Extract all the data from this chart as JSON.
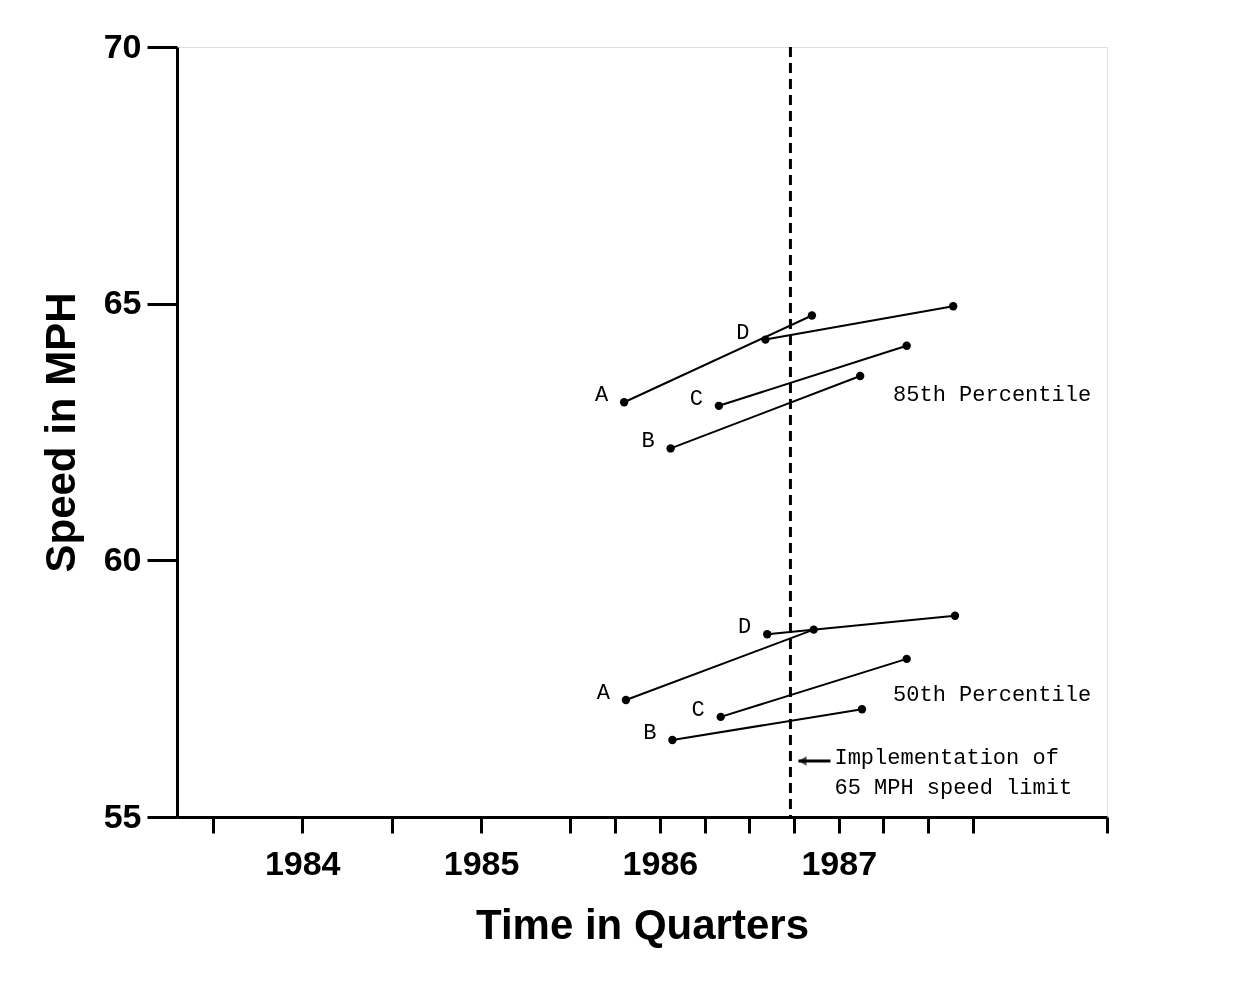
{
  "chart_data": {
    "type": "line",
    "xlabel": "Time in Quarters",
    "ylabel": "Speed in MPH",
    "xlim": [
      1983.8,
      1989.0
    ],
    "ylim": [
      55,
      70
    ],
    "yticks": [
      55,
      60,
      65,
      70
    ],
    "xticks": [
      {
        "value": 1984,
        "label": null
      },
      {
        "value": 1985,
        "label": null
      },
      {
        "value": 1986,
        "label": null
      },
      {
        "value": 1986.25,
        "label": null
      },
      {
        "value": 1986.75,
        "label": null
      },
      {
        "value": 1987,
        "label": null
      },
      {
        "value": 1987.25,
        "label": null
      },
      {
        "value": 1987.75,
        "label": null
      },
      {
        "value": 1988,
        "label": null
      },
      {
        "value": 1988.25,
        "label": null
      },
      {
        "value": 1989,
        "label": null
      },
      {
        "value": 1984.5,
        "label": "1984"
      },
      {
        "value": 1985.5,
        "label": "1985"
      },
      {
        "value": 1986.5,
        "label": "1986"
      },
      {
        "value": 1987.5,
        "label": "1987"
      }
    ],
    "grid": false,
    "marker": "circle",
    "line_style": "solid",
    "series": [
      {
        "name": "A",
        "color": "#000000",
        "x": [
          1986.3,
          1987.35
        ],
        "values": [
          63.08,
          64.77
        ]
      },
      {
        "name": "D",
        "color": "#000000",
        "x": [
          1987.09,
          1988.14
        ],
        "values": [
          64.3,
          64.95
        ]
      },
      {
        "name": "C",
        "color": "#000000",
        "x": [
          1986.83,
          1987.88
        ],
        "values": [
          63.01,
          64.18
        ]
      },
      {
        "name": "B",
        "color": "#000000",
        "x": [
          1986.56,
          1987.62
        ],
        "values": [
          62.18,
          63.59
        ]
      },
      {
        "name": "D",
        "color": "#000000",
        "x": [
          1987.1,
          1988.15
        ],
        "values": [
          58.56,
          58.92
        ]
      },
      {
        "name": "A",
        "color": "#000000",
        "x": [
          1986.31,
          1987.36
        ],
        "values": [
          57.28,
          58.65
        ]
      },
      {
        "name": "C",
        "color": "#000000",
        "x": [
          1986.84,
          1987.88
        ],
        "values": [
          56.95,
          58.08
        ]
      },
      {
        "name": "B",
        "color": "#000000",
        "x": [
          1986.57,
          1987.63
        ],
        "values": [
          56.5,
          57.1
        ]
      }
    ],
    "ref_lines": [
      {
        "axis": "x",
        "value": 1987.23,
        "label": "Implementation of\n65 MPH  speed limit",
        "color": "#000000",
        "line_style": "dashed"
      }
    ],
    "annotations": [
      "85th Percentile",
      "50th Percentile"
    ]
  }
}
